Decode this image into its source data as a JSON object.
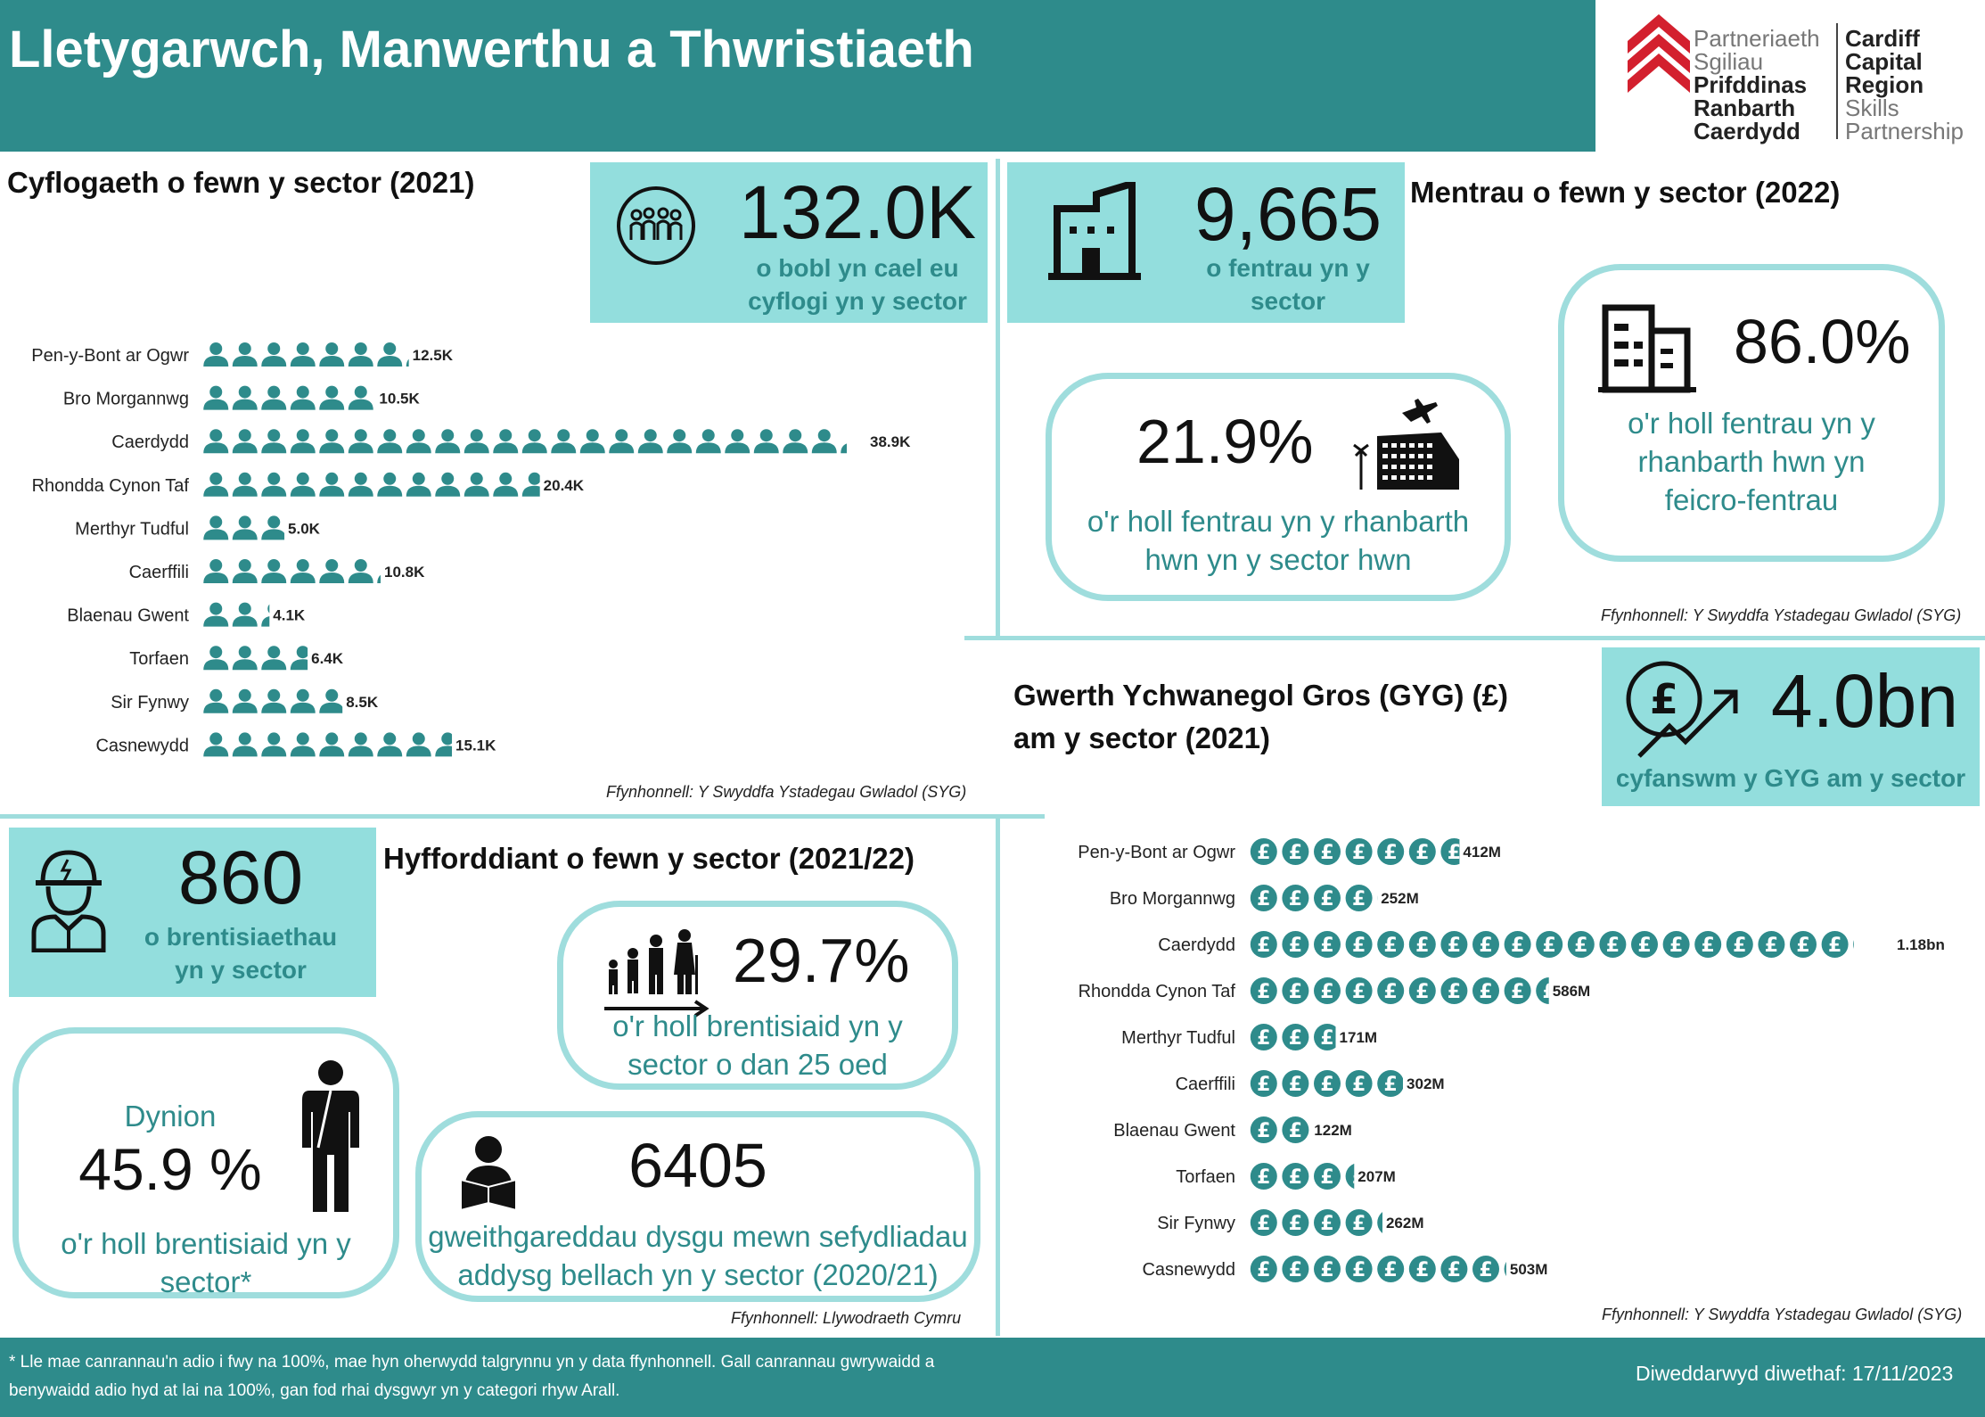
{
  "header": {
    "title": "Lletygarwch, Manwerthu a Thwristiaeth",
    "logo_welsh": [
      "Partneriaeth",
      "Sgiliau",
      "Prifddinas",
      "Ranbarth",
      "Caerdydd"
    ],
    "logo_english": [
      "Cardiff",
      "Capital",
      "Region",
      "Skills",
      "Partnership"
    ]
  },
  "employment": {
    "title": "Cyflogaeth o fewn y sector (2021)",
    "kpi_value": "132.0K",
    "kpi_label_1": "o bobl yn cael eu",
    "kpi_label_2": "cyflogi yn y sector",
    "source": "Ffynhonnell: Y Swyddfa Ystadegau Gwladol (SYG)"
  },
  "enterprises": {
    "title": "Mentrau o fewn y sector (2022)",
    "kpi_value": "9,665",
    "kpi_label_1": "o fentrau yn y",
    "kpi_label_2": "sector",
    "share_value": "21.9%",
    "share_label_1": "o'r holl fentrau yn y rhanbarth",
    "share_label_2": "hwn yn y sector hwn",
    "micro_value": "86.0%",
    "micro_label_1": "o'r holl fentrau yn y",
    "micro_label_2": "rhanbarth hwn yn",
    "micro_label_3": "feicro-fentrau",
    "source": "Ffynhonnell: Y Swyddfa Ystadegau Gwladol (SYG)"
  },
  "gva": {
    "title_1": "Gwerth Ychwanegol Gros (GYG) (£)",
    "title_2": "am y sector (2021)",
    "kpi_value": "4.0bn",
    "kpi_label": "cyfanswm y GYG am y sector",
    "source": "Ffynhonnell: Y Swyddfa Ystadegau Gwladol (SYG)"
  },
  "training": {
    "title": "Hyfforddiant o fewn y sector (2021/22)",
    "apprenticeships_value": "860",
    "apprenticeships_label_1": "o brentisiaethau",
    "apprenticeships_label_2": "yn y sector",
    "under25_value": "29.7%",
    "under25_label_1": "o'r holl brentisiaid yn y",
    "under25_label_2": "sector o dan 25 oed",
    "men_heading": "Dynion",
    "men_value": "45.9 %",
    "men_label_1": "o'r holl brentisiaid yn y",
    "men_label_2": "sector*",
    "fe_value": "6405",
    "fe_label_1": "gweithgareddau dysgu mewn sefydliadau",
    "fe_label_2": "addysg bellach yn y sector (2020/21)",
    "source": "Ffynhonnell: Llywodraeth Cymru"
  },
  "footer": {
    "footnote_1": "* Lle mae canrannau'n adio i fwy na 100%, mae hyn oherwydd talgrynnu yn y data ffynhonnell. Gall canrannau gwrywaidd a",
    "footnote_2": "benywaidd adio hyd at lai na 100%, gan fod rhai dysgwyr yn y categori rhyw Arall.",
    "updated": "Diweddarwyd diwethaf: 17/11/2023"
  },
  "colors": {
    "teal": "#2e8b8b",
    "light_teal": "#93dedd",
    "border": "#9fdddd",
    "logo_red": "#d3202e"
  },
  "chart_data": [
    {
      "type": "bar",
      "title": "Cyflogaeth o fewn y sector (2021)",
      "orientation": "horizontal",
      "unit": "K",
      "categories": [
        "Pen-y-Bont ar Ogwr",
        "Bro Morgannwg",
        "Caerdydd",
        "Rhondda Cynon Taf",
        "Merthyr Tudful",
        "Caerffili",
        "Blaenau Gwent",
        "Torfaen",
        "Sir Fynwy",
        "Casnewydd"
      ],
      "values": [
        12.5,
        10.5,
        38.9,
        20.4,
        5.0,
        10.8,
        4.1,
        6.4,
        8.5,
        15.1
      ],
      "labels": [
        "12.5K",
        "10.5K",
        "38.9K",
        "20.4K",
        "5.0K",
        "10.8K",
        "4.1K",
        "6.4K",
        "8.5K",
        "15.1K"
      ],
      "icon": "person-icon"
    },
    {
      "type": "bar",
      "title": "Gwerth Ychwanegol Gros (GYG) (£) am y sector (2021)",
      "orientation": "horizontal",
      "unit": "£M",
      "categories": [
        "Pen-y-Bont ar Ogwr",
        "Bro Morgannwg",
        "Caerdydd",
        "Rhondda Cynon Taf",
        "Merthyr Tudful",
        "Caerffili",
        "Blaenau Gwent",
        "Torfaen",
        "Sir Fynwy",
        "Casnewydd"
      ],
      "values": [
        412,
        252,
        1180,
        586,
        171,
        302,
        122,
        207,
        262,
        503
      ],
      "labels": [
        "412M",
        "252M",
        "1.18bn",
        "586M",
        "171M",
        "302M",
        "122M",
        "207M",
        "262M",
        "503M"
      ],
      "icon": "pound-coin-icon"
    }
  ]
}
